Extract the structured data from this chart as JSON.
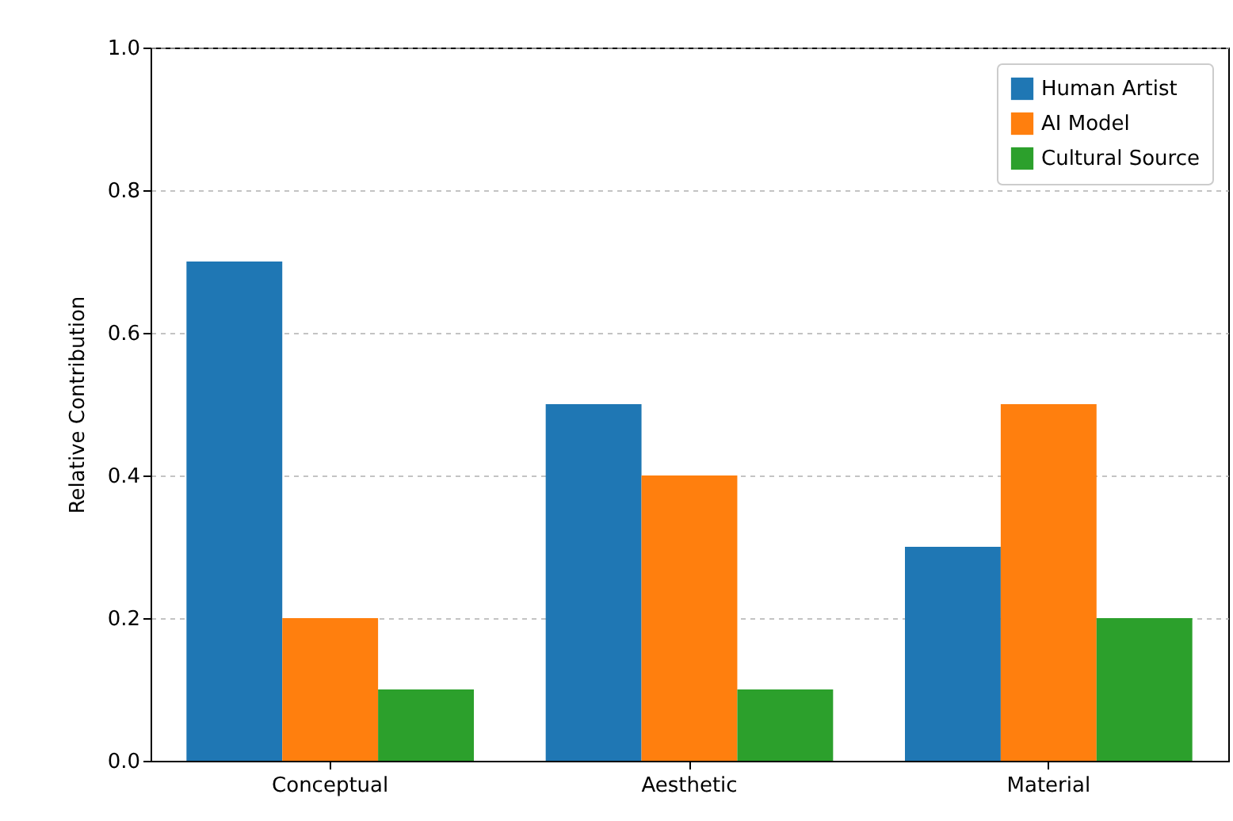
{
  "chart_data": {
    "type": "bar",
    "ylabel": "Relative Contribution",
    "categories": [
      "Conceptual",
      "Aesthetic",
      "Material"
    ],
    "series": [
      {
        "name": "Human Artist",
        "color": "#1f77b4",
        "values": [
          0.7,
          0.5,
          0.3
        ]
      },
      {
        "name": "AI Model",
        "color": "#ff7f0e",
        "values": [
          0.2,
          0.4,
          0.5
        ]
      },
      {
        "name": "Cultural Source",
        "color": "#2ca02c",
        "values": [
          0.1,
          0.1,
          0.2
        ]
      }
    ],
    "ylim": [
      0,
      1
    ],
    "yticks": [
      {
        "value": 0,
        "label": "0.0"
      },
      {
        "value": 0.2,
        "label": "0.2"
      },
      {
        "value": 0.4,
        "label": "0.4"
      },
      {
        "value": 0.6,
        "label": "0.6"
      },
      {
        "value": 0.8,
        "label": "0.8"
      },
      {
        "value": 1,
        "label": "1.0"
      }
    ],
    "grid": "y",
    "legend": "top right"
  }
}
